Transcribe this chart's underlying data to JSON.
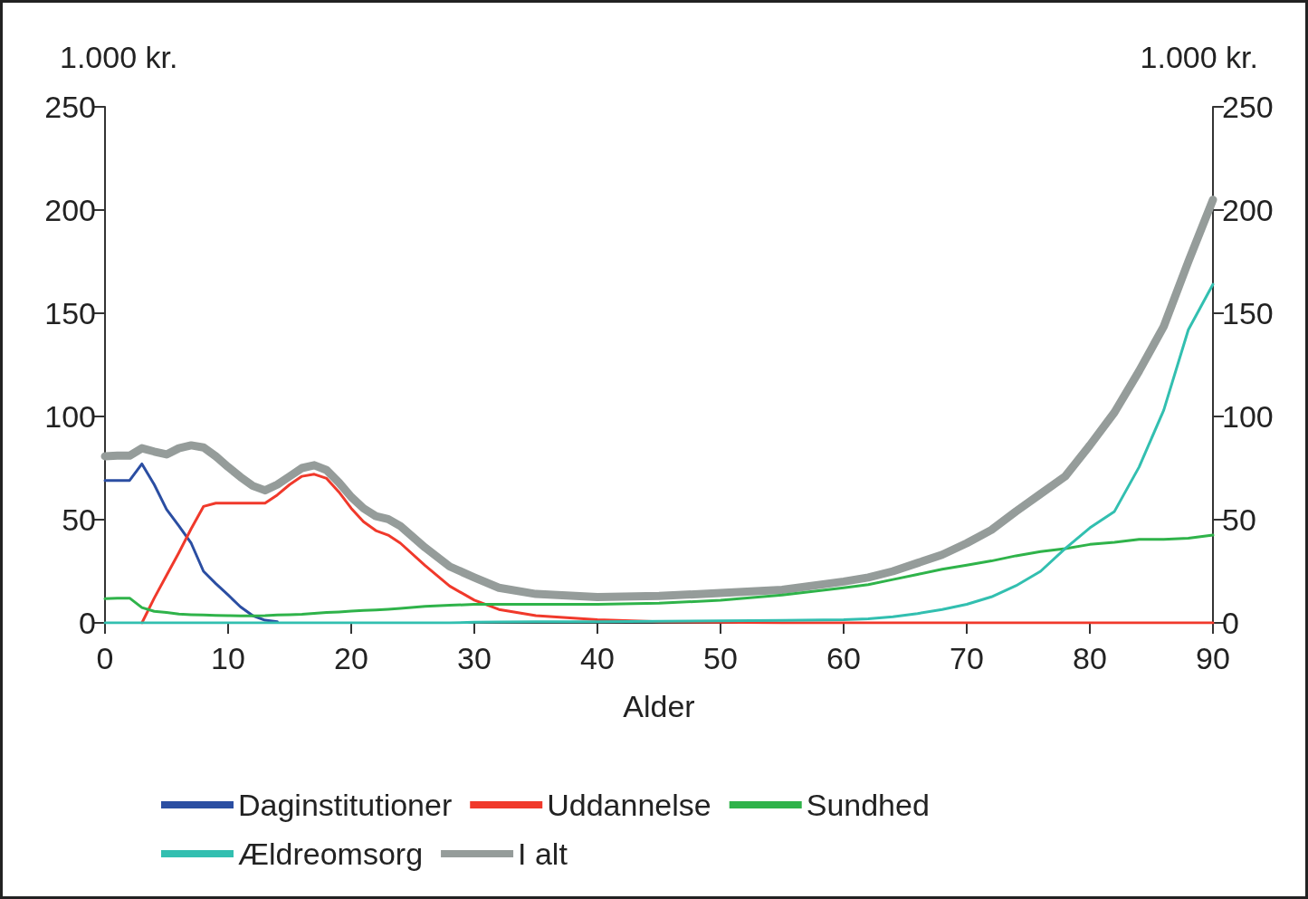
{
  "chart_data": {
    "type": "line",
    "xlabel": "Alder",
    "ylabel": "1.000 kr.",
    "y2label": "1.000 kr.",
    "x": [
      0,
      1,
      2,
      3,
      4,
      5,
      6,
      7,
      8,
      9,
      10,
      11,
      12,
      13,
      14,
      15,
      16,
      17,
      18,
      19,
      20,
      21,
      22,
      23,
      24,
      26,
      28,
      30,
      32,
      35,
      40,
      45,
      50,
      55,
      60,
      62,
      64,
      66,
      68,
      70,
      72,
      74,
      76,
      78,
      80,
      82,
      84,
      86,
      88,
      90
    ],
    "series": [
      {
        "name": "Daginstitutioner",
        "color": "#2b4ea2",
        "values": [
          69,
          69,
          69,
          77,
          67,
          55,
          47,
          38.6,
          25,
          19,
          13.5,
          7.8,
          3.5,
          1.3,
          0.5,
          null,
          null,
          null,
          null,
          null,
          null,
          null,
          null,
          null,
          null,
          null,
          null,
          null,
          null,
          null,
          null,
          null,
          null,
          null,
          null,
          null,
          null,
          null,
          null,
          null,
          null,
          null,
          null,
          null,
          null,
          null,
          null,
          null,
          null,
          null
        ]
      },
      {
        "name": "Uddannelse",
        "color": "#f0392b",
        "values": [
          null,
          null,
          null,
          0,
          12,
          23,
          34,
          45.6,
          56.4,
          58,
          58,
          58,
          58,
          58,
          62,
          67,
          71,
          72,
          70,
          63.4,
          55.5,
          49,
          44.7,
          42.5,
          38.6,
          27.8,
          17.8,
          11,
          6.5,
          3.5,
          1.5,
          0.5,
          0.3,
          0,
          0,
          0,
          0,
          0,
          0,
          0,
          0,
          0,
          0,
          0,
          0,
          0,
          0,
          0,
          0,
          0
        ]
      },
      {
        "name": "Sundhed",
        "color": "#2fb34a",
        "values": [
          11.7,
          12,
          12,
          7.4,
          5.6,
          5,
          4.3,
          4,
          3.8,
          3.6,
          3.5,
          3.4,
          3.4,
          3.5,
          3.8,
          4,
          4.2,
          4.6,
          5,
          5.3,
          5.7,
          6,
          6.3,
          6.6,
          7,
          8,
          8.5,
          9,
          9,
          9,
          9,
          9.5,
          11,
          13.5,
          17,
          18.5,
          21,
          23.5,
          26,
          28,
          30,
          32.5,
          34.5,
          36,
          38,
          39,
          40.5,
          40.5,
          41,
          42.5
        ]
      },
      {
        "name": "Ældreomsorg",
        "color": "#32bfb0",
        "values": [
          0,
          0,
          0,
          0,
          0,
          0,
          0,
          0,
          0,
          0,
          0,
          0,
          0,
          0,
          0,
          0,
          0,
          0,
          0,
          0,
          0,
          0,
          0,
          0,
          0,
          0,
          0,
          0.3,
          0.4,
          0.5,
          0.5,
          0.8,
          1,
          1.2,
          1.5,
          2,
          3,
          4.5,
          6.5,
          9,
          12.6,
          18,
          25,
          36,
          46,
          54,
          75.5,
          103,
          142,
          164
        ]
      },
      {
        "name": "I alt",
        "color": "#959c9a",
        "values": [
          80.7,
          81,
          81,
          84.6,
          83,
          81.6,
          84.6,
          86,
          85,
          80.7,
          75.5,
          70.7,
          66.4,
          64.2,
          67,
          71,
          75,
          76.4,
          74,
          68,
          61,
          55.5,
          51.7,
          50.3,
          46.9,
          36.5,
          27.3,
          22,
          17,
          14,
          12.5,
          13,
          14.5,
          16,
          20,
          22,
          25,
          29,
          33,
          38.6,
          45,
          54,
          62.5,
          71,
          86,
          102,
          122,
          143.6,
          175,
          205
        ]
      }
    ],
    "xlim": [
      0,
      90
    ],
    "xticks": [
      0,
      10,
      20,
      30,
      40,
      50,
      60,
      70,
      80,
      90
    ],
    "ylim": [
      0,
      250
    ],
    "yticks": [
      0,
      50,
      100,
      150,
      200,
      250
    ],
    "y2lim": [
      0,
      250
    ],
    "y2ticks": [
      0,
      50,
      100,
      150,
      200,
      250
    ],
    "grid": false,
    "legend": "bottom",
    "marker": "none",
    "line_style": "solid"
  }
}
